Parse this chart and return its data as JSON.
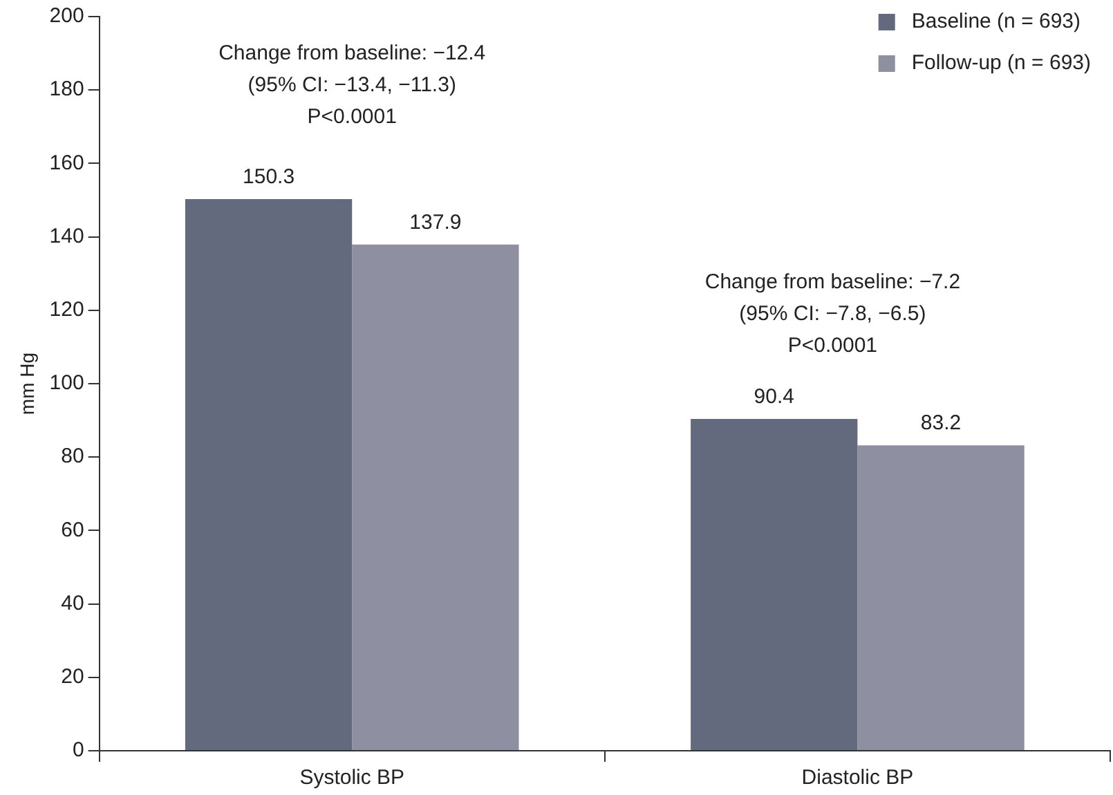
{
  "chart_data": {
    "type": "bar",
    "ylabel": "mm Hg",
    "categories": [
      "Systolic BP",
      "Diastolic BP"
    ],
    "series": [
      {
        "name": "Baseline (n = 693)",
        "color": "#636a7e",
        "values": [
          150.3,
          90.4
        ]
      },
      {
        "name": "Follow-up (n = 693)",
        "color": "#8e90a2",
        "values": [
          137.9,
          83.2
        ]
      }
    ],
    "ylim": [
      0,
      200
    ],
    "yticks": [
      0,
      20,
      40,
      60,
      80,
      100,
      120,
      140,
      160,
      180,
      200
    ],
    "grid": false,
    "legend": "top right",
    "data_labels": true,
    "annotations": [
      "Change from baseline: −12.4\n(95% CI: −13.4, −11.3)\nP<0.0001",
      "Change from baseline: −7.2\n(95% CI: −7.8, −6.5)\nP<0.0001"
    ]
  }
}
